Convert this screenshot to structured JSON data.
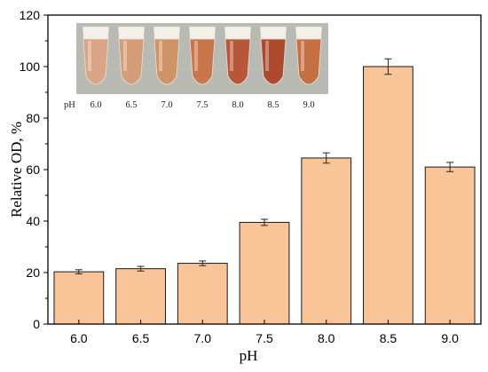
{
  "chart_data": {
    "type": "bar",
    "xlabel": "pH",
    "ylabel": "Relative OD, %",
    "categories": [
      "6.0",
      "6.5",
      "7.0",
      "7.5",
      "8.0",
      "8.5",
      "9.0"
    ],
    "values": [
      20.3,
      21.5,
      23.6,
      39.5,
      64.5,
      100,
      61
    ],
    "errors": [
      0.8,
      0.9,
      0.9,
      1.2,
      2.0,
      3.0,
      1.8
    ],
    "ylim": [
      0,
      120
    ],
    "yticks": [
      "0",
      "20",
      "40",
      "60",
      "80",
      "100",
      "120"
    ],
    "bar_color": "#F9C598",
    "bar_edge_color": "#1a1a1a",
    "grid": false,
    "legend": "none"
  },
  "inset_photo": {
    "row_label": "pH",
    "tube_labels": [
      "6.0",
      "6.5",
      "7.0",
      "7.5",
      "8.0",
      "8.5",
      "9.0"
    ],
    "tube_colors": [
      "#d9a586",
      "#d49d78",
      "#cf9466",
      "#c9764c",
      "#b8563a",
      "#ad4a2e",
      "#c47043"
    ]
  }
}
